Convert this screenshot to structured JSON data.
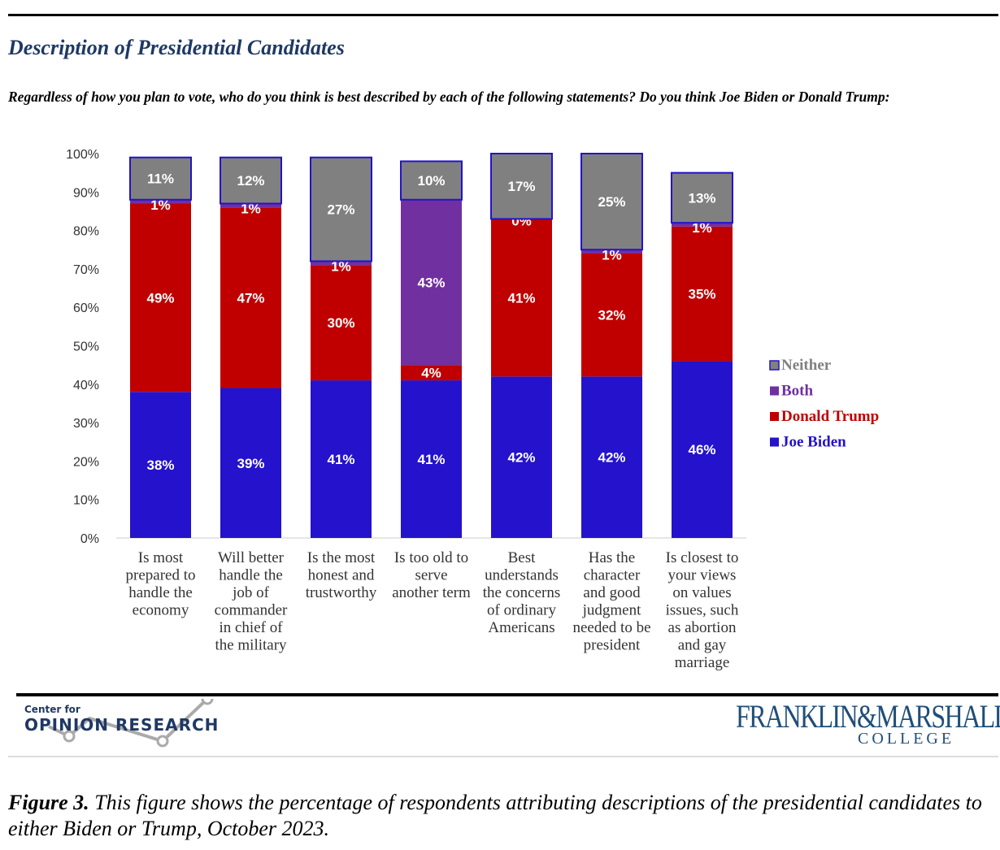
{
  "title": "Description of Presidential Candidates",
  "subtitle": "Regardless of how you plan to vote, who do you think is best described by each of the following statements? Do you think Joe Biden or Donald Trump:",
  "chart_data": {
    "type": "bar",
    "stacked": true,
    "ylim": [
      0,
      100
    ],
    "yticks": [
      "0%",
      "10%",
      "20%",
      "30%",
      "40%",
      "50%",
      "60%",
      "70%",
      "80%",
      "90%",
      "100%"
    ],
    "categories": [
      [
        "Is most",
        "prepared to",
        "handle the",
        "economy"
      ],
      [
        "Will better",
        "handle the",
        "job of",
        "commander",
        "in chief of",
        "the military"
      ],
      [
        "Is the most",
        "honest and",
        "trustworthy"
      ],
      [
        "Is too old to",
        "serve",
        "another term"
      ],
      [
        "Best",
        "understands",
        "the concerns",
        "of ordinary",
        "Americans"
      ],
      [
        "Has the",
        "character",
        "and good",
        "judgment",
        "needed to be",
        "president"
      ],
      [
        "Is closest to",
        "your views",
        "on values",
        "issues, such",
        "as abortion",
        "and gay",
        "marriage"
      ]
    ],
    "series": [
      {
        "name": "Joe Biden",
        "color": "#2412cc",
        "values": [
          38,
          39,
          41,
          41,
          42,
          42,
          46
        ]
      },
      {
        "name": "Donald Trump",
        "color": "#c00000",
        "values": [
          49,
          47,
          30,
          4,
          41,
          32,
          35
        ]
      },
      {
        "name": "Both",
        "color": "#7030a0",
        "values": [
          1,
          1,
          1,
          43,
          0,
          1,
          1
        ]
      },
      {
        "name": "Neither",
        "color": "#808080",
        "values": [
          11,
          12,
          27,
          10,
          17,
          25,
          13
        ]
      }
    ],
    "legend_position": "right",
    "legend_order": [
      "Neither",
      "Both",
      "Donald Trump",
      "Joe Biden"
    ],
    "grid": false
  },
  "footer": {
    "cor_line1": "Center for",
    "cor_line2": "OPINION RESEARCH",
    "fm_line1": "FRANKLIN&MARSHALL",
    "fm_line2": "COLLEGE"
  },
  "caption": {
    "label": "Figure 3.",
    "text": " This figure shows the percentage of respondents attributing descriptions of the presidential candidates to either Biden or Trump, October 2023."
  }
}
